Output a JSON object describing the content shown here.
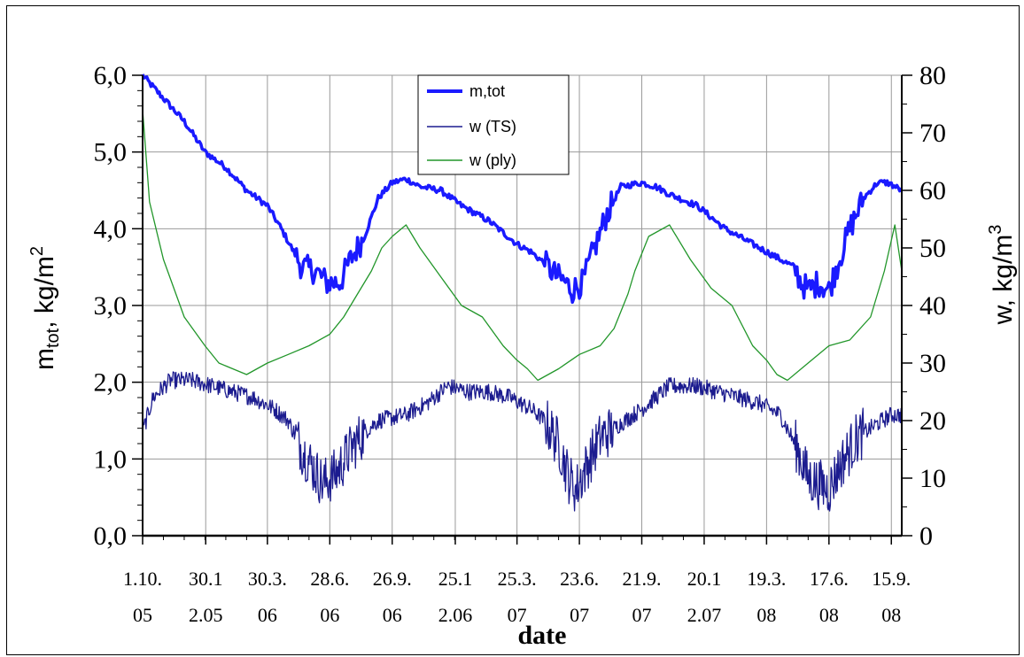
{
  "chart_data": {
    "type": "line",
    "xlabel": "date",
    "ylabel_left": {
      "main": "m",
      "sub": "tot",
      "unit": ",  kg/m",
      "sup": "2"
    },
    "ylabel_right": {
      "main": "w, kg/m",
      "sup": "3"
    },
    "ylim_left": [
      0,
      6
    ],
    "ylim_right": [
      0,
      80
    ],
    "y_ticks_left": [
      "0,0",
      "1,0",
      "2,0",
      "3,0",
      "4,0",
      "5,0",
      "6,0"
    ],
    "y_ticks_right": [
      "0",
      "10",
      "20",
      "30",
      "40",
      "50",
      "60",
      "70",
      "80"
    ],
    "x_range_days": [
      0,
      1095
    ],
    "x_ticks": [
      {
        "day": 0,
        "line1": "1.10.",
        "line2": "05"
      },
      {
        "day": 91,
        "line1": "30.1",
        "line2": "2.05"
      },
      {
        "day": 180,
        "line1": "30.3.",
        "line2": "06"
      },
      {
        "day": 270,
        "line1": "28.6.",
        "line2": "06"
      },
      {
        "day": 360,
        "line1": "26.9.",
        "line2": "06"
      },
      {
        "day": 451,
        "line1": "25.1",
        "line2": "2.06"
      },
      {
        "day": 540,
        "line1": "25.3.",
        "line2": "07"
      },
      {
        "day": 630,
        "line1": "23.6.",
        "line2": "07"
      },
      {
        "day": 720,
        "line1": "21.9.",
        "line2": "07"
      },
      {
        "day": 810,
        "line1": "20.1",
        "line2": "2.07"
      },
      {
        "day": 900,
        "line1": "19.3.",
        "line2": "08"
      },
      {
        "day": 990,
        "line1": "17.6.",
        "line2": "08"
      },
      {
        "day": 1080,
        "line1": "15.9.",
        "line2": "08"
      }
    ],
    "grid": true,
    "legend_position": "top-center",
    "series": [
      {
        "name": "m,tot",
        "axis": "left",
        "color": "#1a1aff",
        "style": "thick",
        "x": [
          0,
          10,
          30,
          60,
          90,
          120,
          150,
          180,
          200,
          230,
          250,
          265,
          285,
          300,
          320,
          340,
          360,
          380,
          400,
          430,
          460,
          500,
          540,
          560,
          580,
          595,
          610,
          620,
          635,
          650,
          670,
          690,
          720,
          740,
          760,
          800,
          840,
          880,
          920,
          940,
          950,
          960,
          975,
          990,
          1005,
          1020,
          1040,
          1060,
          1075,
          1085,
          1095
        ],
        "values": [
          6.0,
          5.9,
          5.7,
          5.4,
          5.0,
          4.8,
          4.5,
          4.3,
          4.0,
          3.5,
          3.45,
          3.3,
          3.3,
          3.6,
          3.9,
          4.4,
          4.6,
          4.65,
          4.55,
          4.5,
          4.3,
          4.1,
          3.8,
          3.7,
          3.55,
          3.4,
          3.3,
          3.2,
          3.3,
          3.7,
          4.2,
          4.55,
          4.6,
          4.55,
          4.45,
          4.3,
          4.0,
          3.8,
          3.6,
          3.5,
          3.3,
          3.2,
          3.3,
          3.2,
          3.6,
          4.0,
          4.4,
          4.6,
          4.6,
          4.55,
          4.5
        ]
      },
      {
        "name": "w (TS)",
        "axis": "right",
        "color": "#1c1c8f",
        "style": "thin-noisy",
        "x": [
          0,
          15,
          40,
          70,
          100,
          130,
          160,
          190,
          210,
          230,
          245,
          260,
          280,
          300,
          320,
          340,
          360,
          380,
          410,
          440,
          470,
          500,
          530,
          560,
          580,
          600,
          615,
          625,
          640,
          660,
          690,
          720,
          760,
          800,
          830,
          860,
          890,
          920,
          945,
          960,
          975,
          990,
          1005,
          1030,
          1060,
          1080,
          1095
        ],
        "values": [
          18,
          24,
          27,
          27,
          26,
          25,
          24,
          22,
          20,
          15,
          12,
          9,
          11,
          15,
          18,
          20,
          20.5,
          21,
          23,
          26,
          25,
          25,
          24,
          22,
          20,
          16,
          10,
          8,
          12,
          17,
          19.5,
          22,
          26,
          26,
          25,
          24,
          23,
          21,
          15,
          10,
          9,
          8,
          12,
          17,
          19.5,
          21,
          21
        ]
      },
      {
        "name": "w (ply)",
        "axis": "right",
        "color": "#22962a",
        "style": "thin",
        "x": [
          0,
          10,
          30,
          60,
          90,
          110,
          130,
          150,
          180,
          210,
          240,
          270,
          290,
          310,
          330,
          345,
          360,
          380,
          400,
          430,
          460,
          490,
          520,
          540,
          555,
          570,
          600,
          630,
          660,
          680,
          700,
          710,
          730,
          760,
          790,
          820,
          850,
          880,
          900,
          915,
          930,
          960,
          990,
          1020,
          1050,
          1070,
          1085,
          1095
        ],
        "values": [
          74,
          58,
          48,
          38,
          33,
          30,
          29,
          28,
          30,
          31.5,
          33,
          35,
          38,
          42,
          46,
          50,
          52,
          54,
          50,
          45,
          40,
          38,
          33,
          30.5,
          29,
          27,
          29,
          31.5,
          33,
          36,
          42,
          46,
          52,
          54,
          48,
          43,
          40,
          33,
          30.5,
          28,
          27,
          30,
          33,
          34,
          38,
          46,
          54,
          46
        ]
      }
    ]
  }
}
